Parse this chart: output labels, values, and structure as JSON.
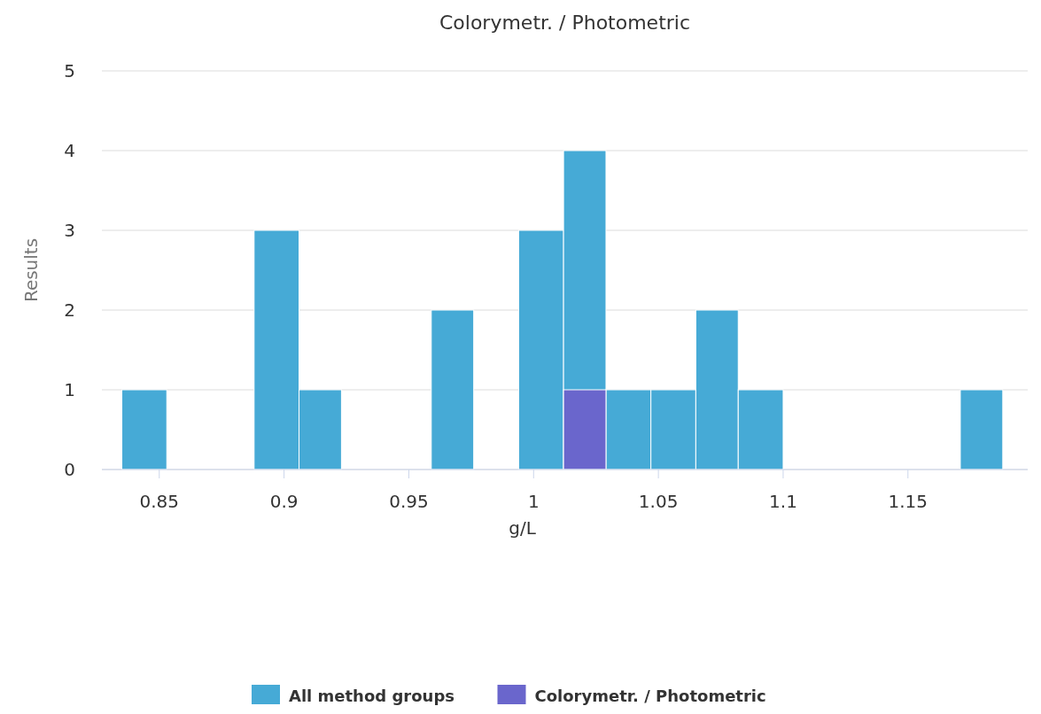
{
  "chart_data": {
    "type": "histogram",
    "title": "Colorymetr. / Photometric",
    "xlabel": "g/L",
    "ylabel": "Results",
    "bins": [
      0.835,
      0.853,
      0.888,
      0.906,
      0.923,
      0.959,
      0.976,
      0.994,
      1.012,
      1.029,
      1.047,
      1.065,
      1.082,
      1.1,
      1.171,
      1.188
    ],
    "series": [
      {
        "name": "All method groups",
        "color": "#46aad6",
        "values": [
          1,
          0,
          3,
          1,
          0,
          2,
          0,
          3,
          4,
          1,
          1,
          2,
          1,
          0,
          1
        ]
      },
      {
        "name": "Colorymetr. / Photometric",
        "color": "#6a66cc",
        "values": [
          0,
          0,
          0,
          0,
          0,
          0,
          0,
          0,
          1,
          0,
          0,
          0,
          0,
          0,
          0
        ]
      }
    ],
    "xlim": [
      0.827,
      1.198
    ],
    "xticks": [
      0.85,
      0.9,
      0.95,
      1,
      1.05,
      1.1,
      1.15
    ],
    "ylim": [
      0,
      5
    ],
    "yticks": [
      0,
      1,
      2,
      3,
      4,
      5
    ],
    "grid": "y",
    "legend": "bottom"
  }
}
